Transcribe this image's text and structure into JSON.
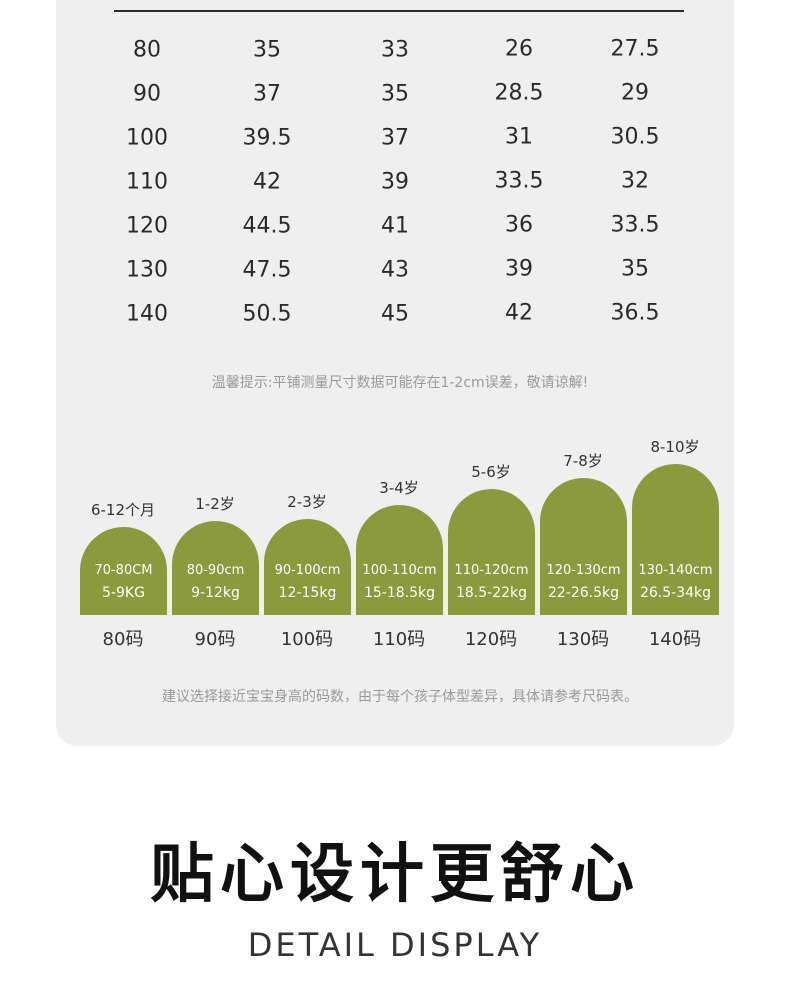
{
  "size_table": {
    "rows": [
      [
        "80",
        "35",
        "33",
        "26",
        "27.5"
      ],
      [
        "90",
        "37",
        "35",
        "28.5",
        "29"
      ],
      [
        "100",
        "39.5",
        "37",
        "31",
        "30.5"
      ],
      [
        "110",
        "42",
        "39",
        "33.5",
        "32"
      ],
      [
        "120",
        "44.5",
        "41",
        "36",
        "33.5"
      ],
      [
        "130",
        "47.5",
        "43",
        "39",
        "35"
      ],
      [
        "140",
        "50.5",
        "45",
        "42",
        "36.5"
      ]
    ]
  },
  "tip": "温馨提示:平铺测量尺寸数据可能存在1-2cm误差，敬请谅解!",
  "age_guide": [
    {
      "age": "6-12个月",
      "height": "70-80CM",
      "weight": "5-9KG",
      "code": "80码"
    },
    {
      "age": "1-2岁",
      "height": "80-90cm",
      "weight": "9-12kg",
      "code": "90码"
    },
    {
      "age": "2-3岁",
      "height": "90-100cm",
      "weight": "12-15kg",
      "code": "100码"
    },
    {
      "age": "3-4岁",
      "height": "100-110cm",
      "weight": "15-18.5kg",
      "code": "110码"
    },
    {
      "age": "5-6岁",
      "height": "110-120cm",
      "weight": "18.5-22kg",
      "code": "120码"
    },
    {
      "age": "7-8岁",
      "height": "120-130cm",
      "weight": "22-26.5kg",
      "code": "130码"
    },
    {
      "age": "8-10岁",
      "height": "130-140cm",
      "weight": "26.5-34kg",
      "code": "140码"
    }
  ],
  "suggest": "建议选择接近宝宝身高的码数，由于每个孩子体型差异，具体请参考尺码表。",
  "hero": {
    "title": "贴心设计更舒心",
    "subtitle": "DETAIL DISPLAY"
  },
  "colors": {
    "arch_green": "#8a9a3d",
    "card_bg": "#efefef"
  }
}
